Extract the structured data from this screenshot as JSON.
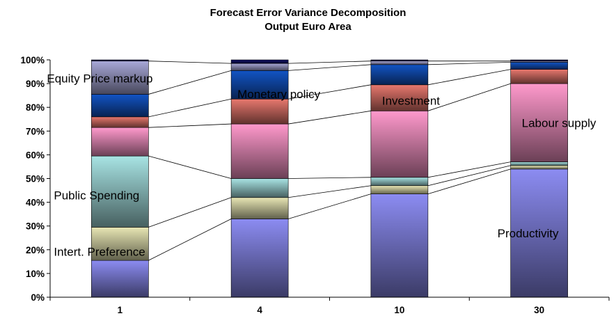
{
  "chart_data": {
    "type": "bar",
    "stacked": true,
    "normalized": true,
    "title": "Forecast Error Variance Decomposition",
    "subtitle": "Output Euro Area",
    "categories": [
      "1",
      "4",
      "10",
      "30"
    ],
    "yticks": [
      "0%",
      "10%",
      "20%",
      "30%",
      "40%",
      "50%",
      "60%",
      "70%",
      "80%",
      "90%",
      "100%"
    ],
    "ylim": [
      0,
      100
    ],
    "grid": false,
    "legend": "none",
    "series": [
      {
        "name": "Productivity",
        "values": [
          15.5,
          33.0,
          43.5,
          54.0
        ],
        "color": "#8c8cf2"
      },
      {
        "name": "Intert. Preference",
        "values": [
          14.0,
          9.0,
          3.5,
          1.5
        ],
        "color": "#e8e6b4"
      },
      {
        "name": "Public Spending",
        "values": [
          30.0,
          8.0,
          3.5,
          1.5
        ],
        "color": "#a8e4e4"
      },
      {
        "name": "Labour supply",
        "values": [
          12.0,
          23.0,
          28.0,
          33.0
        ],
        "color": "#ff99cc"
      },
      {
        "name": "Investment",
        "values": [
          4.5,
          10.5,
          11.0,
          6.0
        ],
        "color": "#e8786e"
      },
      {
        "name": "Monetary policy",
        "values": [
          9.5,
          12.0,
          8.5,
          3.0
        ],
        "color": "#1254c4"
      },
      {
        "name": "Equity Price markup",
        "values": [
          14.0,
          3.0,
          1.5,
          0.5
        ],
        "color": "#a8a8d8"
      },
      {
        "name": "",
        "values": [
          0.5,
          1.5,
          0.5,
          0.5
        ],
        "color": "#11116a"
      }
    ],
    "annotations": [
      {
        "text": "Equity Price markup",
        "series": 6,
        "category": 0
      },
      {
        "text": "Monetary policy",
        "series": 5,
        "category": 1
      },
      {
        "text": "Investment",
        "series": 4,
        "category": 2
      },
      {
        "text": "Labour supply",
        "series": 3,
        "category": 3
      },
      {
        "text": "Public Spending",
        "series": 2,
        "category": 0
      },
      {
        "text": "Intert. Preference",
        "series": 1,
        "category": 0
      },
      {
        "text": "Productivity",
        "series": 0,
        "category": 3
      }
    ]
  }
}
